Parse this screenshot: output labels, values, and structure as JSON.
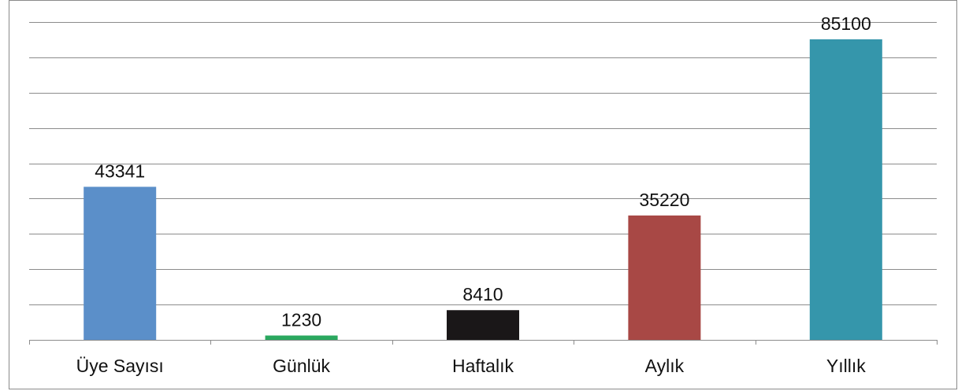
{
  "chart_data": {
    "type": "bar",
    "categories": [
      "Üye Sayısı",
      "Günlük",
      "Haftalık",
      "Aylık",
      "Yıllık"
    ],
    "values": [
      43341,
      1230,
      8410,
      35220,
      85100
    ],
    "colors": [
      "#5b8fc9",
      "#2aa85f",
      "#1a1718",
      "#a84845",
      "#3596ab"
    ],
    "title": "",
    "xlabel": "",
    "ylabel": "",
    "ylim": [
      0,
      90000
    ],
    "grid": true,
    "legend": "none"
  }
}
